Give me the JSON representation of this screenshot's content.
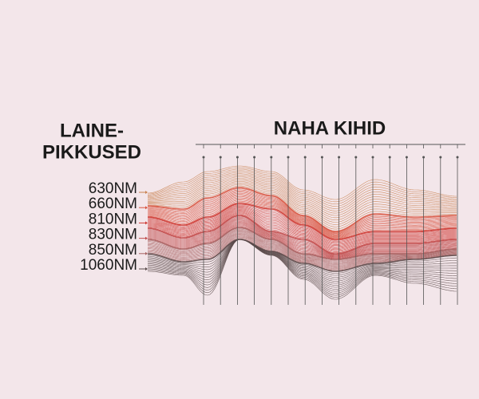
{
  "left_title": [
    "LAINE-",
    "PIKKUSED"
  ],
  "right_title": "NAHA KIHID",
  "wavelengths": [
    "630NM",
    "660NM",
    "810NM",
    "830NM",
    "850NM",
    "1060NM"
  ]
}
